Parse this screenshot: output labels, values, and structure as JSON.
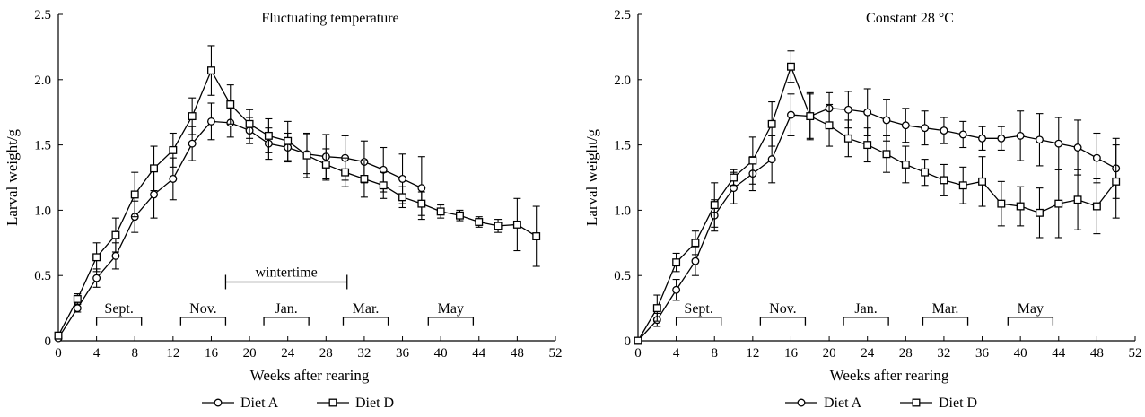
{
  "colors": {
    "ink": "#000000",
    "background": "#ffffff"
  },
  "chart_data": [
    {
      "type": "line",
      "title": "Fluctuating temperature",
      "xlabel": "Weeks after rearing",
      "ylabel": "Larval weight/g",
      "xlim": [
        0,
        52
      ],
      "ylim": [
        0,
        2.5
      ],
      "xticks": [
        0,
        4,
        8,
        12,
        16,
        20,
        24,
        28,
        32,
        36,
        40,
        44,
        48,
        52
      ],
      "yticks": [
        0,
        0.5,
        1.0,
        1.5,
        2.0,
        2.5
      ],
      "ytick_labels": [
        "0",
        "0.5",
        "1.0",
        "1.5",
        "2.0",
        "2.5"
      ],
      "grid": false,
      "legend_position": "bottom-center",
      "month_labels": [
        {
          "label": "Sept.",
          "start": 4,
          "end": 8.7
        },
        {
          "label": "Nov.",
          "start": 12.8,
          "end": 17.5
        },
        {
          "label": "Jan.",
          "start": 21.5,
          "end": 26.2
        },
        {
          "label": "Mar.",
          "start": 29.8,
          "end": 34.5
        },
        {
          "label": "May",
          "start": 38.7,
          "end": 43.4
        }
      ],
      "annotations": [
        {
          "label": "wintertime",
          "start": 17.5,
          "end": 30.2,
          "level": 0.45
        }
      ],
      "series": [
        {
          "name": "Diet A",
          "marker": "circle",
          "x": [
            0,
            2,
            4,
            6,
            8,
            10,
            12,
            14,
            16,
            18,
            20,
            22,
            24,
            26,
            28,
            30,
            32,
            34,
            36,
            38
          ],
          "y": [
            0.02,
            0.25,
            0.48,
            0.65,
            0.95,
            1.12,
            1.24,
            1.51,
            1.68,
            1.67,
            1.61,
            1.51,
            1.48,
            1.43,
            1.41,
            1.4,
            1.37,
            1.31,
            1.24,
            1.17
          ],
          "err": [
            0.01,
            0.03,
            0.07,
            0.1,
            0.12,
            0.18,
            0.16,
            0.13,
            0.14,
            0.11,
            0.1,
            0.12,
            0.11,
            0.15,
            0.17,
            0.17,
            0.16,
            0.17,
            0.19,
            0.24
          ]
        },
        {
          "name": "Diet D",
          "marker": "square",
          "x": [
            0,
            2,
            4,
            6,
            8,
            10,
            12,
            14,
            16,
            18,
            20,
            22,
            24,
            26,
            28,
            30,
            32,
            34,
            36,
            38,
            40,
            42,
            44,
            46,
            48,
            50
          ],
          "y": [
            0.04,
            0.32,
            0.64,
            0.81,
            1.12,
            1.32,
            1.46,
            1.72,
            2.07,
            1.81,
            1.66,
            1.57,
            1.53,
            1.42,
            1.35,
            1.29,
            1.24,
            1.19,
            1.1,
            1.05,
            0.99,
            0.96,
            0.91,
            0.88,
            0.89,
            0.8
          ],
          "err": [
            0.01,
            0.04,
            0.11,
            0.13,
            0.17,
            0.17,
            0.13,
            0.14,
            0.19,
            0.15,
            0.11,
            0.13,
            0.15,
            0.17,
            0.12,
            0.11,
            0.14,
            0.1,
            0.08,
            0.09,
            0.05,
            0.04,
            0.04,
            0.05,
            0.2,
            0.23
          ]
        }
      ]
    },
    {
      "type": "line",
      "title": "Constant 28 °C",
      "xlabel": "Weeks after rearing",
      "ylabel": "Larval weight/g",
      "xlim": [
        0,
        52
      ],
      "ylim": [
        0,
        2.5
      ],
      "xticks": [
        0,
        4,
        8,
        12,
        16,
        20,
        24,
        28,
        32,
        36,
        40,
        44,
        48,
        52
      ],
      "yticks": [
        0,
        0.5,
        1.0,
        1.5,
        2.0,
        2.5
      ],
      "ytick_labels": [
        "0",
        "0.5",
        "1.0",
        "1.5",
        "2.0",
        "2.5"
      ],
      "grid": false,
      "legend_position": "bottom-center",
      "month_labels": [
        {
          "label": "Sept.",
          "start": 4,
          "end": 8.7
        },
        {
          "label": "Nov.",
          "start": 12.8,
          "end": 17.5
        },
        {
          "label": "Jan.",
          "start": 21.5,
          "end": 26.2
        },
        {
          "label": "Mar.",
          "start": 29.8,
          "end": 34.5
        },
        {
          "label": "May",
          "start": 38.7,
          "end": 43.4
        }
      ],
      "annotations": [],
      "series": [
        {
          "name": "Diet A",
          "marker": "circle",
          "x": [
            0,
            2,
            4,
            6,
            8,
            10,
            12,
            14,
            16,
            18,
            20,
            22,
            24,
            26,
            28,
            30,
            32,
            34,
            36,
            38,
            40,
            42,
            44,
            46,
            48,
            50
          ],
          "y": [
            0.0,
            0.16,
            0.39,
            0.61,
            0.96,
            1.17,
            1.28,
            1.39,
            1.73,
            1.72,
            1.78,
            1.77,
            1.75,
            1.69,
            1.65,
            1.63,
            1.61,
            1.58,
            1.55,
            1.55,
            1.57,
            1.54,
            1.51,
            1.48,
            1.4,
            1.32
          ],
          "err": [
            0.0,
            0.05,
            0.08,
            0.11,
            0.12,
            0.12,
            0.13,
            0.18,
            0.16,
            0.17,
            0.12,
            0.14,
            0.18,
            0.16,
            0.13,
            0.13,
            0.1,
            0.1,
            0.09,
            0.09,
            0.19,
            0.2,
            0.2,
            0.21,
            0.19,
            0.23
          ]
        },
        {
          "name": "Diet D",
          "marker": "square",
          "x": [
            0,
            2,
            4,
            6,
            8,
            10,
            12,
            14,
            16,
            18,
            20,
            22,
            24,
            26,
            28,
            30,
            32,
            34,
            36,
            38,
            40,
            42,
            44,
            46,
            48,
            50
          ],
          "y": [
            0.0,
            0.25,
            0.6,
            0.75,
            1.04,
            1.25,
            1.38,
            1.66,
            2.1,
            1.72,
            1.65,
            1.55,
            1.5,
            1.43,
            1.35,
            1.29,
            1.23,
            1.19,
            1.22,
            1.05,
            1.03,
            0.98,
            1.05,
            1.08,
            1.03,
            1.22
          ],
          "err": [
            0.0,
            0.1,
            0.07,
            0.09,
            0.17,
            0.06,
            0.18,
            0.17,
            0.12,
            0.18,
            0.16,
            0.14,
            0.13,
            0.14,
            0.14,
            0.1,
            0.12,
            0.14,
            0.19,
            0.17,
            0.15,
            0.19,
            0.26,
            0.23,
            0.21,
            0.28
          ]
        }
      ]
    }
  ]
}
